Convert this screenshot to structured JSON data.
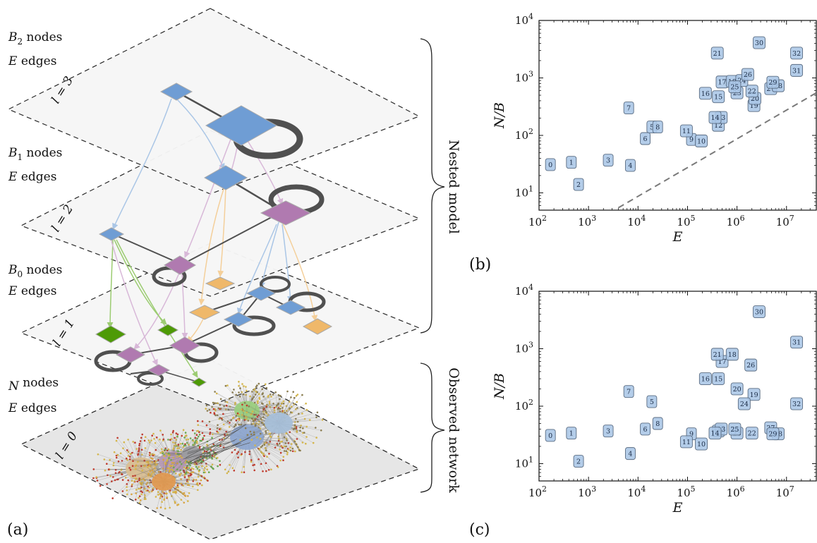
{
  "diagram": {
    "panel_label": "(a)",
    "layers": [
      {
        "level": "l = 3",
        "nodes": "B",
        "nodes_sub": "2",
        "nodes_word": " nodes",
        "edges": "E",
        "edges_word": " edges"
      },
      {
        "level": "l = 2",
        "nodes": "B",
        "nodes_sub": "1",
        "nodes_word": " nodes",
        "edges": "E",
        "edges_word": " edges"
      },
      {
        "level": "l = 1",
        "nodes": "B",
        "nodes_sub": "0",
        "nodes_word": " nodes",
        "edges": "E",
        "edges_word": " edges"
      },
      {
        "level": "l = 0",
        "nodes": "N",
        "nodes_sub": "",
        "nodes_word": " nodes",
        "edges": "E",
        "edges_word": " edges"
      }
    ],
    "brace_labels": {
      "top": "Nested model",
      "bottom": "Observed network"
    },
    "colors": {
      "blue": "#6f9dd4",
      "purple": "#b07ab0",
      "orange": "#efb86a",
      "green": "#4e9a06",
      "edge": "#505050",
      "plane": "#f6f6f6",
      "plane_bottom": "#e6e6e6"
    }
  },
  "chart_data": [
    {
      "type": "scatter",
      "panel_label": "(b)",
      "xlabel": "E",
      "ylabel": "N/B",
      "xscale": "log",
      "yscale": "log",
      "xlim": [
        100,
        40000000
      ],
      "ylim": [
        5,
        10000
      ],
      "xticks": [
        {
          "v": 100,
          "b": "10",
          "e": "2"
        },
        {
          "v": 1000,
          "b": "10",
          "e": "3"
        },
        {
          "v": 10000,
          "b": "10",
          "e": "4"
        },
        {
          "v": 100000,
          "b": "10",
          "e": "5"
        },
        {
          "v": 1000000,
          "b": "10",
          "e": "6"
        },
        {
          "v": 10000000,
          "b": "10",
          "e": "7"
        }
      ],
      "yticks": [
        {
          "v": 10,
          "b": "10",
          "e": "1"
        },
        {
          "v": 100,
          "b": "10",
          "e": "2"
        },
        {
          "v": 1000,
          "b": "10",
          "e": "3"
        },
        {
          "v": 10000,
          "b": "10",
          "e": "4"
        }
      ],
      "reference_line": {
        "style": "dashed",
        "points": [
          [
            4000,
            5.5
          ],
          [
            40000000,
            550
          ]
        ]
      },
      "points": [
        {
          "label": "0",
          "x": 170,
          "y": 31
        },
        {
          "label": "1",
          "x": 450,
          "y": 34
        },
        {
          "label": "2",
          "x": 630,
          "y": 14
        },
        {
          "label": "3",
          "x": 2500,
          "y": 37
        },
        {
          "label": "4",
          "x": 7000,
          "y": 30
        },
        {
          "label": "5",
          "x": 19000,
          "y": 140
        },
        {
          "label": "6",
          "x": 14000,
          "y": 88
        },
        {
          "label": "7",
          "x": 6500,
          "y": 300
        },
        {
          "label": "8",
          "x": 25000,
          "y": 140
        },
        {
          "label": "9",
          "x": 120000,
          "y": 85
        },
        {
          "label": "10",
          "x": 190000,
          "y": 80
        },
        {
          "label": "11",
          "x": 95000,
          "y": 120
        },
        {
          "label": "12",
          "x": 420000,
          "y": 150
        },
        {
          "label": "13",
          "x": 480000,
          "y": 205
        },
        {
          "label": "14",
          "x": 360000,
          "y": 205
        },
        {
          "label": "15",
          "x": 420000,
          "y": 470
        },
        {
          "label": "16",
          "x": 230000,
          "y": 540
        },
        {
          "label": "17",
          "x": 500000,
          "y": 850
        },
        {
          "label": "18",
          "x": 800000,
          "y": 870
        },
        {
          "label": "19",
          "x": 2200000,
          "y": 330
        },
        {
          "label": "20",
          "x": 2300000,
          "y": 440
        },
        {
          "label": "21",
          "x": 400000,
          "y": 2700
        },
        {
          "label": "22",
          "x": 2000000,
          "y": 590
        },
        {
          "label": "23",
          "x": 1000000,
          "y": 550
        },
        {
          "label": "24",
          "x": 1250000,
          "y": 900
        },
        {
          "label": "25",
          "x": 900000,
          "y": 700
        },
        {
          "label": "26",
          "x": 1650000,
          "y": 1150
        },
        {
          "label": "27",
          "x": 4800000,
          "y": 650
        },
        {
          "label": "28",
          "x": 6800000,
          "y": 730
        },
        {
          "label": "29",
          "x": 5300000,
          "y": 840
        },
        {
          "label": "30",
          "x": 2800000,
          "y": 4100
        },
        {
          "label": "31",
          "x": 16000000,
          "y": 1350
        },
        {
          "label": "32",
          "x": 16000000,
          "y": 2700
        }
      ]
    },
    {
      "type": "scatter",
      "panel_label": "(c)",
      "xlabel": "E",
      "ylabel": "N/B",
      "xscale": "log",
      "yscale": "log",
      "xlim": [
        100,
        40000000
      ],
      "ylim": [
        5,
        10000
      ],
      "xticks": [
        {
          "v": 100,
          "b": "10",
          "e": "2"
        },
        {
          "v": 1000,
          "b": "10",
          "e": "3"
        },
        {
          "v": 10000,
          "b": "10",
          "e": "4"
        },
        {
          "v": 100000,
          "b": "10",
          "e": "5"
        },
        {
          "v": 1000000,
          "b": "10",
          "e": "6"
        },
        {
          "v": 10000000,
          "b": "10",
          "e": "7"
        }
      ],
      "yticks": [
        {
          "v": 10,
          "b": "10",
          "e": "1"
        },
        {
          "v": 100,
          "b": "10",
          "e": "2"
        },
        {
          "v": 1000,
          "b": "10",
          "e": "3"
        },
        {
          "v": 10000,
          "b": "10",
          "e": "4"
        }
      ],
      "points": [
        {
          "label": "0",
          "x": 170,
          "y": 31
        },
        {
          "label": "1",
          "x": 450,
          "y": 34
        },
        {
          "label": "2",
          "x": 630,
          "y": 11
        },
        {
          "label": "3",
          "x": 2500,
          "y": 37
        },
        {
          "label": "4",
          "x": 7000,
          "y": 15
        },
        {
          "label": "5",
          "x": 19000,
          "y": 120
        },
        {
          "label": "6",
          "x": 14000,
          "y": 40
        },
        {
          "label": "7",
          "x": 6500,
          "y": 180
        },
        {
          "label": "8",
          "x": 25000,
          "y": 50
        },
        {
          "label": "9",
          "x": 120000,
          "y": 33
        },
        {
          "label": "10",
          "x": 190000,
          "y": 22
        },
        {
          "label": "11",
          "x": 95000,
          "y": 24
        },
        {
          "label": "12",
          "x": 420000,
          "y": 37
        },
        {
          "label": "13",
          "x": 480000,
          "y": 40
        },
        {
          "label": "14",
          "x": 360000,
          "y": 34
        },
        {
          "label": "15",
          "x": 420000,
          "y": 300
        },
        {
          "label": "16",
          "x": 230000,
          "y": 300
        },
        {
          "label": "17",
          "x": 500000,
          "y": 600
        },
        {
          "label": "18",
          "x": 800000,
          "y": 800
        },
        {
          "label": "19",
          "x": 2200000,
          "y": 160
        },
        {
          "label": "20",
          "x": 1000000,
          "y": 200
        },
        {
          "label": "21",
          "x": 400000,
          "y": 800
        },
        {
          "label": "22",
          "x": 2000000,
          "y": 34
        },
        {
          "label": "23",
          "x": 1000000,
          "y": 34
        },
        {
          "label": "24",
          "x": 1400000,
          "y": 110
        },
        {
          "label": "25",
          "x": 900000,
          "y": 40
        },
        {
          "label": "26",
          "x": 1900000,
          "y": 520
        },
        {
          "label": "27",
          "x": 4800000,
          "y": 42
        },
        {
          "label": "28",
          "x": 6800000,
          "y": 33
        },
        {
          "label": "29",
          "x": 5300000,
          "y": 33
        },
        {
          "label": "30",
          "x": 2800000,
          "y": 4400
        },
        {
          "label": "31",
          "x": 16000000,
          "y": 1300
        },
        {
          "label": "32",
          "x": 16000000,
          "y": 110
        }
      ]
    }
  ]
}
